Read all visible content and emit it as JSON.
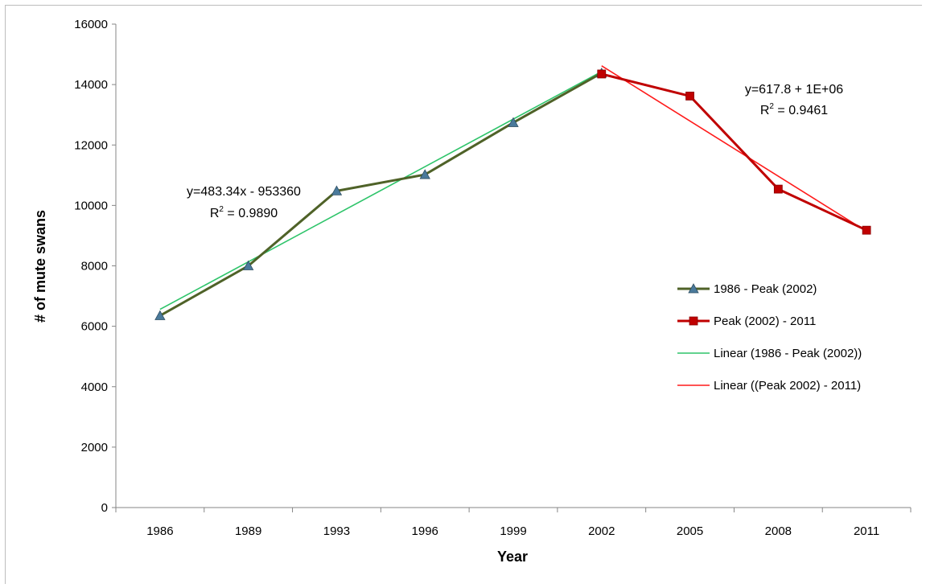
{
  "chart_data": {
    "type": "line",
    "title": "",
    "xlabel": "Year",
    "ylabel": "# of mute swans",
    "categories": [
      "1986",
      "1989",
      "1993",
      "1996",
      "1999",
      "2002",
      "2005",
      "2008",
      "2011"
    ],
    "ylim": [
      0,
      16000
    ],
    "yticks": [
      "0",
      "2000",
      "4000",
      "6000",
      "8000",
      "10000",
      "12000",
      "14000",
      "16000"
    ],
    "grid": false,
    "legend_position": "right",
    "series": [
      {
        "name": "1986 - Peak (2002)",
        "color": "#4f6228",
        "marker_color": "#4a7a9b",
        "marker": "triangle",
        "points": [
          {
            "category": "1986",
            "value": 6350
          },
          {
            "category": "1989",
            "value": 8000
          },
          {
            "category": "1993",
            "value": 10480
          },
          {
            "category": "1996",
            "value": 11020
          },
          {
            "category": "1999",
            "value": 12740
          },
          {
            "category": "2002",
            "value": 14380
          }
        ]
      },
      {
        "name": "Peak (2002) - 2011",
        "color": "#c00000",
        "marker_color": "#c00000",
        "marker": "square",
        "points": [
          {
            "category": "2002",
            "value": 14350
          },
          {
            "category": "2005",
            "value": 13620
          },
          {
            "category": "2008",
            "value": 10540
          },
          {
            "category": "2011",
            "value": 9180
          }
        ]
      },
      {
        "name": "Linear (1986 - Peak (2002))",
        "color": "#2ec46a",
        "marker": "none",
        "trendline": true,
        "points": [
          {
            "category": "1986",
            "value": 6560
          },
          {
            "category": "2002",
            "value": 14430
          }
        ]
      },
      {
        "name": "Linear ((Peak 2002) - 2011)",
        "color": "#ff1a1a",
        "marker": "none",
        "trendline": true,
        "points": [
          {
            "category": "2002",
            "value": 14620
          },
          {
            "category": "2011",
            "value": 9140
          }
        ]
      }
    ],
    "annotations": [
      {
        "line1": "y=483.34x - 953360",
        "r2_prefix": "R",
        "r2_sup": "2",
        "r2_value": " = 0.9890"
      },
      {
        "line1": "y=617.8 + 1E+06",
        "r2_prefix": "R",
        "r2_sup": "2",
        "r2_value": " = 0.9461"
      }
    ]
  }
}
